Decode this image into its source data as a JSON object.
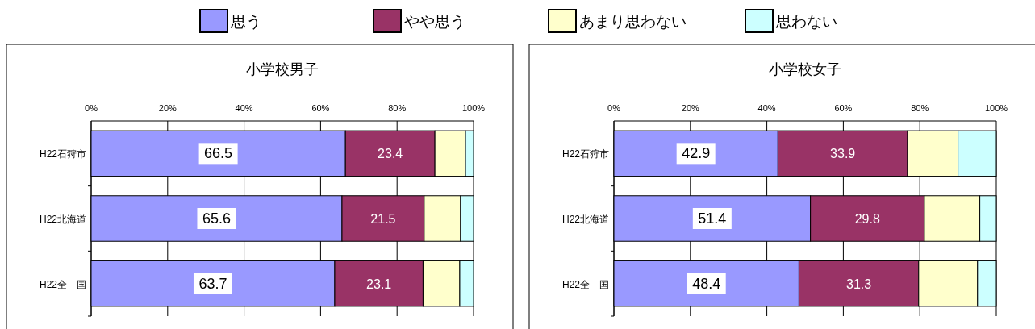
{
  "chart_data": [
    {
      "type": "bar",
      "orientation": "horizontal",
      "stacked": true,
      "title": "小学校男子",
      "categories": [
        "H22石狩市",
        "H22北海道",
        "H22全　国"
      ],
      "xlim": [
        0,
        100
      ],
      "xticks": [
        {
          "value": 0,
          "label": "0%"
        },
        {
          "value": 20,
          "label": "20%"
        },
        {
          "value": 40,
          "label": "40%"
        },
        {
          "value": 60,
          "label": "60%"
        },
        {
          "value": 80,
          "label": "80%"
        },
        {
          "value": 100,
          "label": "100%"
        }
      ],
      "grid": "x",
      "legend": "top",
      "series": [
        {
          "name": "思う",
          "color": "#9999ff",
          "values": [
            66.5,
            65.6,
            63.7
          ],
          "value_labels": [
            "66.5",
            "65.6",
            "63.7"
          ]
        },
        {
          "name": "やや思う",
          "color": "#993366",
          "values": [
            23.4,
            21.5,
            23.1
          ],
          "value_labels": [
            "23.4",
            "21.5",
            "23.1"
          ]
        },
        {
          "name": "あまり思わない",
          "color": "#ffffcc",
          "values": [
            8.0,
            9.5,
            9.6
          ]
        },
        {
          "name": "思わない",
          "color": "#ccffff",
          "values": [
            2.1,
            3.4,
            3.6
          ]
        }
      ]
    },
    {
      "type": "bar",
      "orientation": "horizontal",
      "stacked": true,
      "title": "小学校女子",
      "categories": [
        "H22石狩市",
        "H22北海道",
        "H22全　国"
      ],
      "xlim": [
        0,
        100
      ],
      "xticks": [
        {
          "value": 0,
          "label": "0%"
        },
        {
          "value": 20,
          "label": "20%"
        },
        {
          "value": 40,
          "label": "40%"
        },
        {
          "value": 60,
          "label": "60%"
        },
        {
          "value": 80,
          "label": "80%"
        },
        {
          "value": 100,
          "label": "100%"
        }
      ],
      "grid": "x",
      "series": [
        {
          "color": "#9999ff",
          "values": [
            42.9,
            51.4,
            48.4
          ],
          "value_labels": [
            "42.9",
            "51.4",
            "48.4"
          ]
        },
        {
          "color": "#993366",
          "values": [
            33.9,
            29.8,
            31.3
          ],
          "value_labels": [
            "33.9",
            "29.8",
            "31.3"
          ]
        },
        {
          "color": "#ffffcc",
          "values": [
            13.2,
            14.5,
            15.4
          ]
        },
        {
          "color": "#ccffff",
          "values": [
            10.0,
            4.3,
            4.9
          ]
        }
      ]
    }
  ]
}
